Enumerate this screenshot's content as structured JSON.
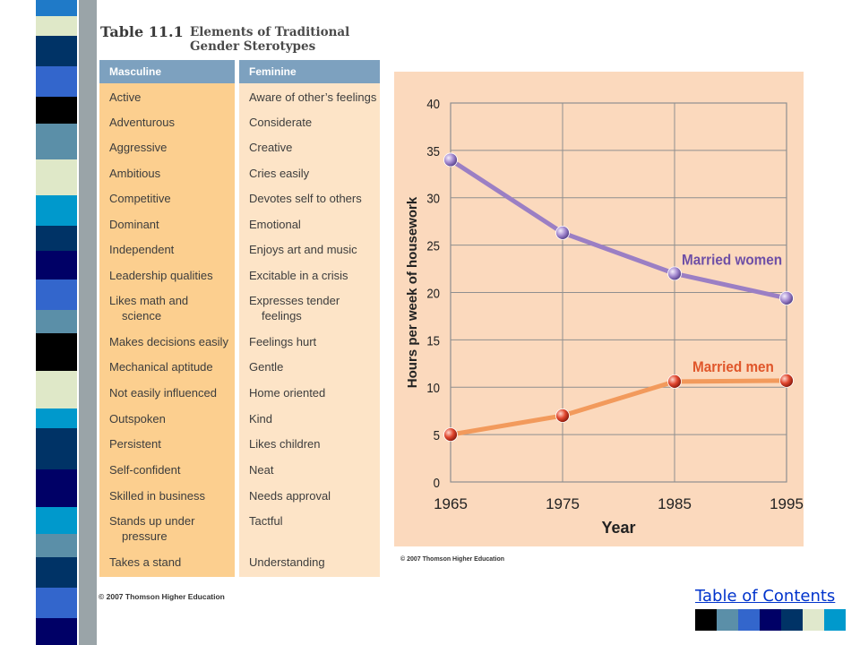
{
  "table": {
    "number": "Table 11.1",
    "title_line1": "Elements of Traditional",
    "title_line2": "Gender Sterotypes",
    "headers": {
      "masculine": "Masculine",
      "feminine": "Feminine"
    },
    "masculine": [
      [
        "Active"
      ],
      [
        "Adventurous"
      ],
      [
        "Aggressive"
      ],
      [
        "Ambitious"
      ],
      [
        "Competitive"
      ],
      [
        "Dominant"
      ],
      [
        "Independent"
      ],
      [
        "Leadership qualities"
      ],
      [
        "Likes math and",
        "science"
      ],
      [
        "Makes decisions easily"
      ],
      [
        "Mechanical aptitude"
      ],
      [
        "Not easily influenced"
      ],
      [
        "Outspoken"
      ],
      [
        "Persistent"
      ],
      [
        "Self-confident"
      ],
      [
        "Skilled in business"
      ],
      [
        "Stands up under",
        "pressure"
      ],
      [
        "Takes a stand"
      ]
    ],
    "feminine": [
      [
        "Aware of other’s feelings"
      ],
      [
        "Considerate"
      ],
      [
        "Creative"
      ],
      [
        "Cries easily"
      ],
      [
        "Devotes self to others"
      ],
      [
        "Emotional"
      ],
      [
        "Enjoys art and music"
      ],
      [
        "Excitable in a crisis"
      ],
      [
        "Expresses tender",
        "feelings"
      ],
      [
        "Feelings hurt"
      ],
      [
        "Gentle"
      ],
      [
        "Home oriented"
      ],
      [
        "Kind"
      ],
      [
        "Likes children"
      ],
      [
        "Neat"
      ],
      [
        "Needs approval"
      ],
      [
        "Tactful"
      ],
      [
        "Understanding"
      ]
    ],
    "copyright": "© 2007 Thomson Higher Education"
  },
  "chart_data": {
    "type": "line",
    "title": "",
    "xlabel": "Year",
    "ylabel": "Hours per week of housework",
    "x": [
      1965,
      1975,
      1985,
      1995
    ],
    "xlim": [
      1965,
      1995
    ],
    "ylim": [
      0,
      40
    ],
    "yticks": [
      0,
      5,
      10,
      15,
      20,
      25,
      30,
      35,
      40
    ],
    "grid": true,
    "series": [
      {
        "name": "Married women",
        "color": "#9b7fc4",
        "values": [
          34,
          26.3,
          22,
          19.4
        ]
      },
      {
        "name": "Married men",
        "color": "#f29a5c",
        "values": [
          5,
          7,
          10.6,
          10.7
        ]
      }
    ],
    "copyright": "© 2007 Thomson Higher Education"
  },
  "footer": {
    "toc_label": "Table of Contents",
    "squares": [
      "#000000",
      "#5b8fa8",
      "#3366cc",
      "#000066",
      "#003366",
      "#e0e8cc",
      "#0099cc"
    ]
  }
}
